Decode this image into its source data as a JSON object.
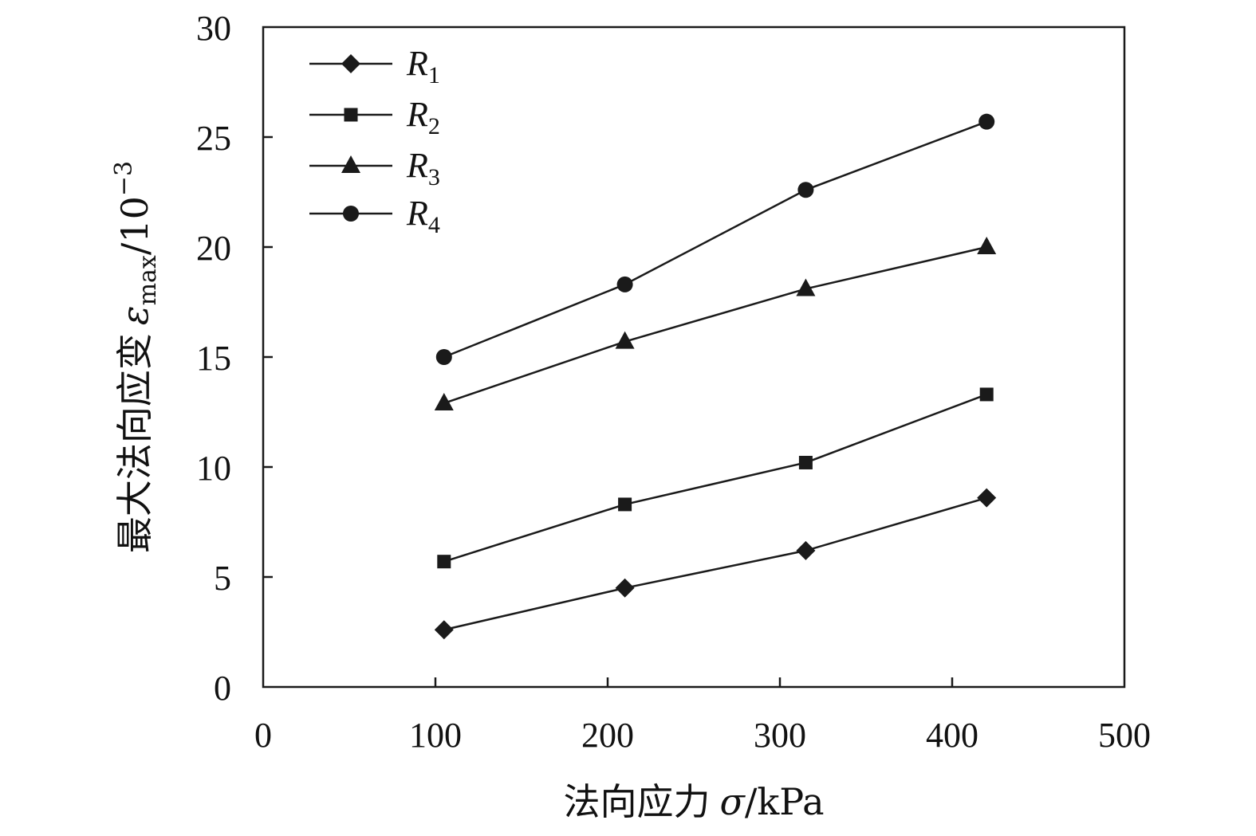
{
  "chart_data": {
    "type": "line",
    "xlabel": {
      "cn": "法向应力",
      "symbol": "σ",
      "unit": "/kPa"
    },
    "ylabel": {
      "cn": "最大法向应变",
      "symbol": "ε",
      "sub": "max",
      "unit": "/10",
      "exp": "−3"
    },
    "xlim": [
      0,
      500
    ],
    "ylim": [
      0,
      30
    ],
    "xticks": [
      "0",
      "100",
      "200",
      "300",
      "400",
      "500"
    ],
    "yticks": [
      "0",
      "5",
      "10",
      "15",
      "20",
      "25",
      "30"
    ],
    "x": [
      105,
      210,
      315,
      420
    ],
    "grid": false,
    "legend_position": "top-left",
    "series": [
      {
        "name": "R",
        "sub": "1",
        "marker": "diamond",
        "values": [
          2.6,
          4.5,
          6.2,
          8.6
        ]
      },
      {
        "name": "R",
        "sub": "2",
        "marker": "square",
        "values": [
          5.7,
          8.3,
          10.2,
          13.3
        ]
      },
      {
        "name": "R",
        "sub": "3",
        "marker": "triangle",
        "values": [
          12.9,
          15.7,
          18.1,
          20.0
        ]
      },
      {
        "name": "R",
        "sub": "4",
        "marker": "circle",
        "values": [
          15.0,
          18.3,
          22.6,
          25.7
        ]
      }
    ],
    "colors": {
      "line": "#1a1a1a",
      "marker": "#1a1a1a"
    }
  }
}
